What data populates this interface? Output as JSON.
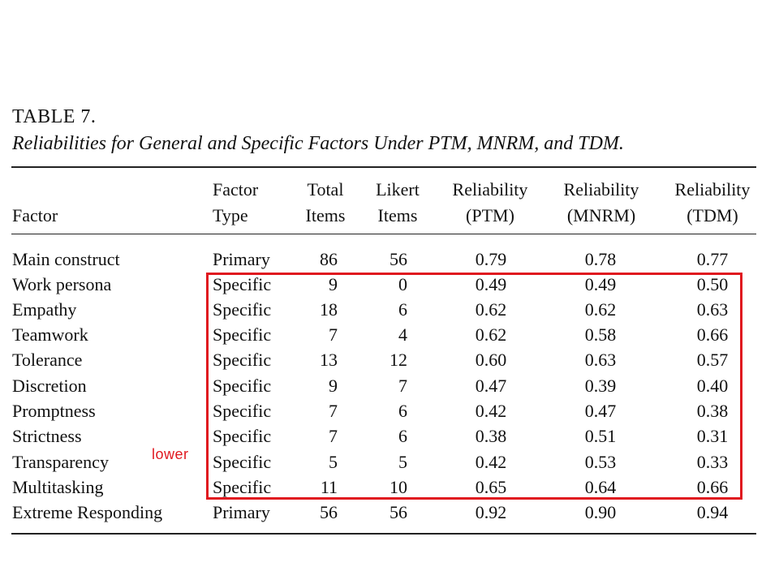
{
  "table": {
    "label": "TABLE 7.",
    "caption": "Reliabilities for General and Specific Factors Under PTM, MNRM, and TDM.",
    "headers": {
      "factor": [
        "",
        "Factor"
      ],
      "type": [
        "Factor",
        "Type"
      ],
      "total": [
        "Total",
        "Items"
      ],
      "likert": [
        "Likert",
        "Items"
      ],
      "ptm": [
        "Reliability",
        "(PTM)"
      ],
      "mnrm": [
        "Reliability",
        "(MNRM)"
      ],
      "tdm": [
        "Reliability",
        "(TDM)"
      ]
    },
    "rows": [
      {
        "factor": "Main construct",
        "type": "Primary",
        "total": "86",
        "likert": "56",
        "ptm": "0.79",
        "mnrm": "0.78",
        "tdm": "0.77"
      },
      {
        "factor": "Work persona",
        "type": "Specific",
        "total": "9",
        "likert": "0",
        "ptm": "0.49",
        "mnrm": "0.49",
        "tdm": "0.50"
      },
      {
        "factor": "Empathy",
        "type": "Specific",
        "total": "18",
        "likert": "6",
        "ptm": "0.62",
        "mnrm": "0.62",
        "tdm": "0.63"
      },
      {
        "factor": "Teamwork",
        "type": "Specific",
        "total": "7",
        "likert": "4",
        "ptm": "0.62",
        "mnrm": "0.58",
        "tdm": "0.66"
      },
      {
        "factor": "Tolerance",
        "type": "Specific",
        "total": "13",
        "likert": "12",
        "ptm": "0.60",
        "mnrm": "0.63",
        "tdm": "0.57"
      },
      {
        "factor": "Discretion",
        "type": "Specific",
        "total": "9",
        "likert": "7",
        "ptm": "0.47",
        "mnrm": "0.39",
        "tdm": "0.40"
      },
      {
        "factor": "Promptness",
        "type": "Specific",
        "total": "7",
        "likert": "6",
        "ptm": "0.42",
        "mnrm": "0.47",
        "tdm": "0.38"
      },
      {
        "factor": "Strictness",
        "type": "Specific",
        "total": "7",
        "likert": "6",
        "ptm": "0.38",
        "mnrm": "0.51",
        "tdm": "0.31"
      },
      {
        "factor": "Transparency",
        "type": "Specific",
        "total": "5",
        "likert": "5",
        "ptm": "0.42",
        "mnrm": "0.53",
        "tdm": "0.33"
      },
      {
        "factor": "Multitasking",
        "type": "Specific",
        "total": "11",
        "likert": "10",
        "ptm": "0.65",
        "mnrm": "0.64",
        "tdm": "0.66"
      },
      {
        "factor": "Extreme Responding",
        "type": "Primary",
        "total": "56",
        "likert": "56",
        "ptm": "0.92",
        "mnrm": "0.90",
        "tdm": "0.94"
      }
    ]
  },
  "annotation": {
    "text": "lower",
    "color": "#e0181f"
  },
  "highlight": {
    "color": "#e0181f"
  }
}
